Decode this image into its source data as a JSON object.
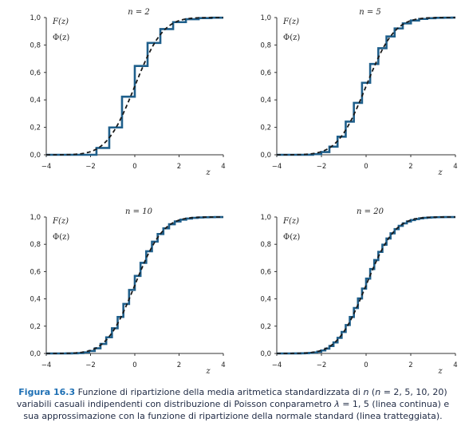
{
  "chart_data": [
    {
      "type": "line",
      "title": "n = 2",
      "n": 2,
      "lambda": 1.5,
      "xlabel": "z",
      "xlim": [
        -4,
        4
      ],
      "ylim": [
        0,
        1
      ],
      "x_ticks": [
        "−4",
        "−2",
        "0",
        "2",
        "4"
      ],
      "y_ticks": [
        "0,0",
        "0,2",
        "0,4",
        "0,6",
        "0,8",
        "1,0"
      ],
      "legend": [
        "F(z)",
        "Φ(z)"
      ],
      "series": [
        {
          "name": "F(z)",
          "style": "step"
        },
        {
          "name": "Φ(z)",
          "style": "dashed"
        }
      ]
    },
    {
      "type": "line",
      "title": "n = 5",
      "n": 5,
      "lambda": 1.5,
      "xlabel": "z",
      "xlim": [
        -4,
        4
      ],
      "ylim": [
        0,
        1
      ],
      "x_ticks": [
        "−4",
        "−2",
        "0",
        "2",
        "4"
      ],
      "y_ticks": [
        "0,0",
        "0,2",
        "0,4",
        "0,6",
        "0,8",
        "1,0"
      ],
      "legend": [
        "F(z)",
        "Φ(z)"
      ],
      "series": [
        {
          "name": "F(z)",
          "style": "step"
        },
        {
          "name": "Φ(z)",
          "style": "dashed"
        }
      ]
    },
    {
      "type": "line",
      "title": "n = 10",
      "n": 10,
      "lambda": 1.5,
      "xlabel": "z",
      "xlim": [
        -4,
        4
      ],
      "ylim": [
        0,
        1
      ],
      "x_ticks": [
        "−4",
        "−2",
        "0",
        "2",
        "4"
      ],
      "y_ticks": [
        "0,0",
        "0,2",
        "0,4",
        "0,6",
        "0,8",
        "1,0"
      ],
      "legend": [
        "F(z)",
        "Φ(z)"
      ],
      "series": [
        {
          "name": "F(z)",
          "style": "step"
        },
        {
          "name": "Φ(z)",
          "style": "dashed"
        }
      ]
    },
    {
      "type": "line",
      "title": "n = 20",
      "n": 20,
      "lambda": 1.5,
      "xlabel": "z",
      "xlim": [
        -4,
        4
      ],
      "ylim": [
        0,
        1
      ],
      "x_ticks": [
        "−4",
        "−2",
        "0",
        "2",
        "4"
      ],
      "y_ticks": [
        "0,0",
        "0,2",
        "0,4",
        "0,6",
        "0,8",
        "1,0"
      ],
      "legend": [
        "F(z)",
        "Φ(z)"
      ],
      "series": [
        {
          "name": "F(z)",
          "style": "step"
        },
        {
          "name": "Φ(z)",
          "style": "dashed"
        }
      ]
    }
  ],
  "colors": {
    "step_line": "#1f5f8b",
    "dashed_line": "#1a1a1a",
    "axis": "#333333",
    "caption_label": "#1d6fb4"
  },
  "caption": {
    "label": "Figura 16.3",
    "text_part1": " Funzione di ripartizione della media aritmetica standardizzata di ",
    "var_n": "n",
    "text_part2": " (",
    "var_n2": "n",
    "text_part3": " = 2, 5, 10, 20) variabili casuali indipendenti con distribuzione di Poisson conparametro ",
    "var_lambda": "λ",
    "text_part4": " = 1, 5 (linea continua) e sua approssimazione con la funzione di ripartizione della normale standard (linea tratteggiata)."
  }
}
